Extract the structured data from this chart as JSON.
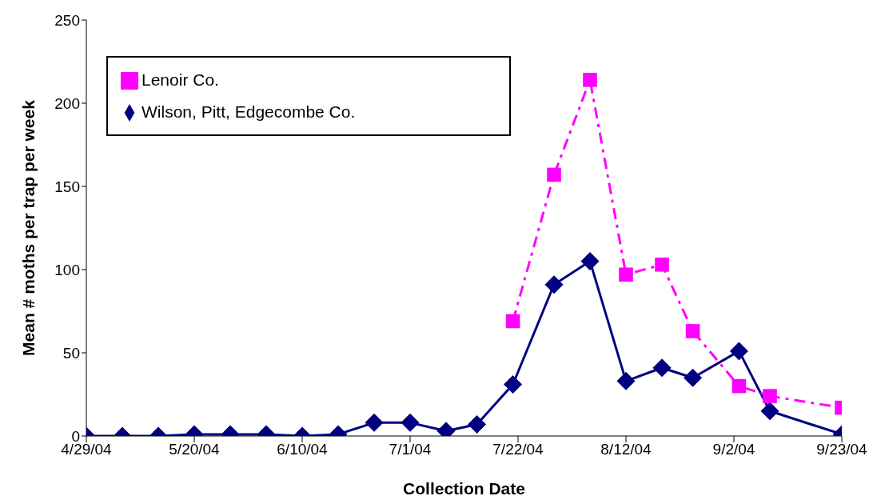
{
  "chart_data": {
    "type": "line",
    "xlabel": "Collection Date",
    "ylabel": "Mean # moths per trap per week",
    "xlim": [
      "2004-04-29",
      "2004-09-23"
    ],
    "xticks": [
      {
        "value": "2004-04-29",
        "label": "4/29/04"
      },
      {
        "value": "2004-05-20",
        "label": "5/20/04"
      },
      {
        "value": "2004-06-10",
        "label": "6/10/04"
      },
      {
        "value": "2004-07-01",
        "label": "7/1/04"
      },
      {
        "value": "2004-07-22",
        "label": "7/22/04"
      },
      {
        "value": "2004-08-12",
        "label": "8/12/04"
      },
      {
        "value": "2004-09-02",
        "label": "9/2/04"
      },
      {
        "value": "2004-09-23",
        "label": "9/23/04"
      }
    ],
    "ylim": [
      0,
      250
    ],
    "yticks": [
      0,
      50,
      100,
      150,
      200,
      250
    ],
    "grid": false,
    "legend": "top left",
    "series": [
      {
        "name": "Wilson, Pitt, Edgecombe Co.",
        "color": "#000080",
        "marker": "diamond",
        "line_style": "solid",
        "x": [
          "2004-04-29",
          "2004-05-06",
          "2004-05-13",
          "2004-05-20",
          "2004-05-27",
          "2004-06-03",
          "2004-06-10",
          "2004-06-17",
          "2004-06-24",
          "2004-07-01",
          "2004-07-08",
          "2004-07-14",
          "2004-07-21",
          "2004-07-29",
          "2004-08-05",
          "2004-08-12",
          "2004-08-19",
          "2004-08-25",
          "2004-09-03",
          "2004-09-09",
          "2004-09-23"
        ],
        "values": [
          0,
          0,
          0,
          1,
          1,
          1,
          0,
          1,
          8,
          8,
          3,
          7,
          31,
          91,
          105,
          33,
          41,
          35,
          51,
          15,
          1
        ]
      },
      {
        "name": "Lenoir Co.",
        "color": "#ff00ff",
        "marker": "square",
        "line_style": "dashed",
        "x": [
          "2004-07-21",
          "2004-07-29",
          "2004-08-05",
          "2004-08-12",
          "2004-08-19",
          "2004-08-25",
          "2004-09-03",
          "2004-09-09",
          "2004-09-23"
        ],
        "values": [
          69,
          157,
          214,
          97,
          103,
          63,
          30,
          24,
          17
        ]
      }
    ]
  }
}
